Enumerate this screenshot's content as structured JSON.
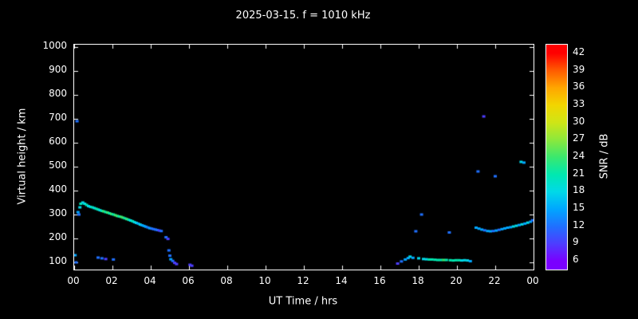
{
  "chart_data": {
    "type": "scatter",
    "title": "2025-03-15. f = 1010 kHz",
    "xlabel": "UT Time / hrs",
    "ylabel": "Virtual height / km",
    "xlim": [
      0,
      24
    ],
    "ylim": [
      70,
      1010
    ],
    "xticks": [
      "00",
      "02",
      "04",
      "06",
      "08",
      "10",
      "12",
      "14",
      "16",
      "18",
      "20",
      "22",
      "00"
    ],
    "xtick_values": [
      0,
      2,
      4,
      6,
      8,
      10,
      12,
      14,
      16,
      18,
      20,
      22,
      24
    ],
    "yticks": [
      100,
      200,
      300,
      400,
      500,
      600,
      700,
      800,
      900,
      1000
    ],
    "grid": false,
    "background": "#000000",
    "colorbar": {
      "label": "SNR / dB",
      "min": 6,
      "max": 42,
      "ticks": [
        6,
        9,
        12,
        15,
        18,
        21,
        24,
        27,
        30,
        33,
        36,
        39,
        42
      ]
    },
    "colormap": [
      {
        "v": 6,
        "c": "#7a00ff"
      },
      {
        "v": 9,
        "c": "#4d3dff"
      },
      {
        "v": 12,
        "c": "#1f70ff"
      },
      {
        "v": 15,
        "c": "#00a6ff"
      },
      {
        "v": 18,
        "c": "#00d9e8"
      },
      {
        "v": 21,
        "c": "#00e8b0"
      },
      {
        "v": 24,
        "c": "#3ae86e"
      },
      {
        "v": 27,
        "c": "#8ce83c"
      },
      {
        "v": 30,
        "c": "#cfe516"
      },
      {
        "v": 33,
        "c": "#f2d500"
      },
      {
        "v": 36,
        "c": "#ffa600"
      },
      {
        "v": 39,
        "c": "#ff5b00"
      },
      {
        "v": 42,
        "c": "#ff0000"
      }
    ],
    "points": [
      [
        0.05,
        130,
        15
      ],
      [
        0.1,
        100,
        12
      ],
      [
        0.15,
        690,
        12
      ],
      [
        0.25,
        300,
        12
      ],
      [
        0.2,
        310,
        15
      ],
      [
        0.3,
        330,
        18
      ],
      [
        0.35,
        345,
        21
      ],
      [
        0.45,
        350,
        18
      ],
      [
        0.55,
        345,
        18
      ],
      [
        0.65,
        340,
        21
      ],
      [
        0.75,
        335,
        18
      ],
      [
        0.85,
        332,
        18
      ],
      [
        0.95,
        330,
        21
      ],
      [
        1.05,
        327,
        18
      ],
      [
        1.15,
        324,
        21
      ],
      [
        1.25,
        321,
        21
      ],
      [
        1.35,
        318,
        18
      ],
      [
        1.45,
        315,
        21
      ],
      [
        1.55,
        313,
        24
      ],
      [
        1.65,
        310,
        21
      ],
      [
        1.75,
        308,
        24
      ],
      [
        1.85,
        305,
        21
      ],
      [
        1.95,
        302,
        24
      ],
      [
        2.05,
        300,
        21
      ],
      [
        2.15,
        297,
        24
      ],
      [
        2.25,
        294,
        24
      ],
      [
        2.35,
        292,
        21
      ],
      [
        2.45,
        290,
        24
      ],
      [
        2.55,
        287,
        24
      ],
      [
        2.65,
        284,
        21
      ],
      [
        2.75,
        281,
        24
      ],
      [
        2.85,
        278,
        21
      ],
      [
        2.95,
        275,
        18
      ],
      [
        3.05,
        272,
        21
      ],
      [
        3.15,
        268,
        18
      ],
      [
        3.25,
        265,
        18
      ],
      [
        3.35,
        262,
        15
      ],
      [
        3.45,
        258,
        18
      ],
      [
        3.55,
        255,
        15
      ],
      [
        3.65,
        252,
        15
      ],
      [
        3.75,
        249,
        15
      ],
      [
        3.85,
        246,
        12
      ],
      [
        3.95,
        243,
        15
      ],
      [
        4.05,
        241,
        12
      ],
      [
        4.15,
        239,
        12
      ],
      [
        4.25,
        237,
        12
      ],
      [
        4.35,
        235,
        12
      ],
      [
        4.45,
        233,
        9
      ],
      [
        4.55,
        231,
        12
      ],
      [
        1.25,
        120,
        12
      ],
      [
        1.45,
        117,
        12
      ],
      [
        1.65,
        114,
        9
      ],
      [
        2.05,
        112,
        12
      ],
      [
        4.8,
        205,
        12
      ],
      [
        4.9,
        198,
        9
      ],
      [
        4.95,
        150,
        12
      ],
      [
        5.0,
        128,
        12
      ],
      [
        5.05,
        113,
        15
      ],
      [
        5.15,
        106,
        12
      ],
      [
        5.25,
        98,
        9
      ],
      [
        5.35,
        93,
        9
      ],
      [
        6.05,
        90,
        9
      ],
      [
        6.15,
        86,
        9
      ],
      [
        16.9,
        95,
        9
      ],
      [
        17.1,
        104,
        12
      ],
      [
        17.3,
        112,
        15
      ],
      [
        17.45,
        118,
        15
      ],
      [
        17.55,
        124,
        18
      ],
      [
        17.7,
        119,
        15
      ],
      [
        17.85,
        230,
        12
      ],
      [
        18.0,
        117,
        18
      ],
      [
        18.15,
        300,
        12
      ],
      [
        18.25,
        114,
        18
      ],
      [
        18.4,
        113,
        18
      ],
      [
        18.55,
        112,
        21
      ],
      [
        18.7,
        112,
        21
      ],
      [
        18.85,
        111,
        21
      ],
      [
        19.0,
        110,
        21
      ],
      [
        19.15,
        110,
        21
      ],
      [
        19.3,
        110,
        24
      ],
      [
        19.45,
        110,
        21
      ],
      [
        19.6,
        225,
        12
      ],
      [
        19.65,
        109,
        21
      ],
      [
        19.8,
        108,
        21
      ],
      [
        19.95,
        109,
        21
      ],
      [
        20.1,
        109,
        21
      ],
      [
        20.25,
        108,
        18
      ],
      [
        20.4,
        109,
        18
      ],
      [
        20.55,
        108,
        18
      ],
      [
        20.7,
        105,
        15
      ],
      [
        21.0,
        245,
        15
      ],
      [
        21.1,
        480,
        12
      ],
      [
        21.15,
        241,
        15
      ],
      [
        21.3,
        237,
        15
      ],
      [
        21.4,
        710,
        9
      ],
      [
        21.45,
        234,
        12
      ],
      [
        21.6,
        231,
        15
      ],
      [
        21.75,
        230,
        15
      ],
      [
        21.9,
        231,
        12
      ],
      [
        22.0,
        460,
        12
      ],
      [
        22.05,
        233,
        15
      ],
      [
        22.2,
        236,
        12
      ],
      [
        22.35,
        239,
        15
      ],
      [
        22.5,
        242,
        15
      ],
      [
        22.65,
        245,
        15
      ],
      [
        22.8,
        247,
        15
      ],
      [
        22.95,
        250,
        18
      ],
      [
        23.1,
        253,
        18
      ],
      [
        23.25,
        256,
        15
      ],
      [
        23.35,
        520,
        18
      ],
      [
        23.5,
        517,
        15
      ],
      [
        23.4,
        259,
        18
      ],
      [
        23.55,
        262,
        15
      ],
      [
        23.7,
        266,
        18
      ],
      [
        23.85,
        270,
        15
      ],
      [
        23.95,
        276,
        12
      ]
    ]
  }
}
